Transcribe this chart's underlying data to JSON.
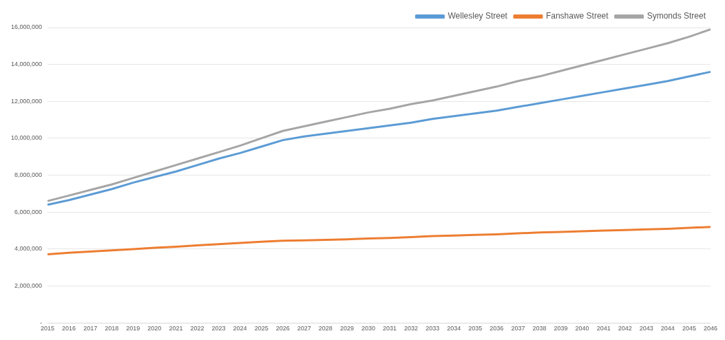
{
  "chart_data": {
    "type": "line",
    "categories": [
      "2015",
      "2016",
      "2017",
      "2018",
      "2019",
      "2020",
      "2021",
      "2022",
      "2023",
      "2024",
      "2025",
      "2026",
      "2027",
      "2028",
      "2029",
      "2030",
      "2031",
      "2032",
      "2033",
      "2034",
      "2035",
      "2036",
      "2037",
      "2038",
      "2039",
      "2040",
      "2041",
      "2042",
      "2043",
      "2044",
      "2045",
      "2046"
    ],
    "series": [
      {
        "name": "Wellesley Street",
        "color": "#5b9bd5",
        "values": [
          6400000,
          6650000,
          6950000,
          7250000,
          7600000,
          7900000,
          8200000,
          8550000,
          8900000,
          9200000,
          9550000,
          9900000,
          10100000,
          10250000,
          10400000,
          10550000,
          10700000,
          10850000,
          11050000,
          11200000,
          11350000,
          11500000,
          11700000,
          11900000,
          12100000,
          12300000,
          12500000,
          12700000,
          12900000,
          13100000,
          13350000,
          13600000
        ]
      },
      {
        "name": "Fanshawe Street",
        "color": "#ed7d31",
        "values": [
          3720000,
          3800000,
          3870000,
          3930000,
          4000000,
          4070000,
          4130000,
          4200000,
          4270000,
          4330000,
          4400000,
          4450000,
          4470000,
          4500000,
          4530000,
          4570000,
          4600000,
          4650000,
          4700000,
          4730000,
          4770000,
          4800000,
          4850000,
          4900000,
          4930000,
          4970000,
          5000000,
          5030000,
          5070000,
          5100000,
          5150000,
          5200000
        ]
      },
      {
        "name": "Symonds Street",
        "color": "#a5a5a5",
        "values": [
          6600000,
          6900000,
          7200000,
          7500000,
          7850000,
          8200000,
          8550000,
          8900000,
          9250000,
          9600000,
          10000000,
          10400000,
          10650000,
          10900000,
          11150000,
          11400000,
          11600000,
          11850000,
          12050000,
          12300000,
          12550000,
          12800000,
          13100000,
          13350000,
          13650000,
          13950000,
          14250000,
          14550000,
          14850000,
          15150000,
          15500000,
          15900000
        ]
      }
    ],
    "ylim": [
      0,
      16000000
    ],
    "yticks": [
      {
        "value": 0,
        "label": "-"
      },
      {
        "value": 2000000,
        "label": "2,000,000"
      },
      {
        "value": 4000000,
        "label": "4,000,000"
      },
      {
        "value": 6000000,
        "label": "6,000,000"
      },
      {
        "value": 8000000,
        "label": "8,000,000"
      },
      {
        "value": 10000000,
        "label": "10,000,000"
      },
      {
        "value": 12000000,
        "label": "12,000,000"
      },
      {
        "value": 14000000,
        "label": "14,000,000"
      },
      {
        "value": 16000000,
        "label": "16,000,000"
      }
    ],
    "grid": "y",
    "legend": "top right",
    "marker": "none",
    "line_style": "solid"
  }
}
